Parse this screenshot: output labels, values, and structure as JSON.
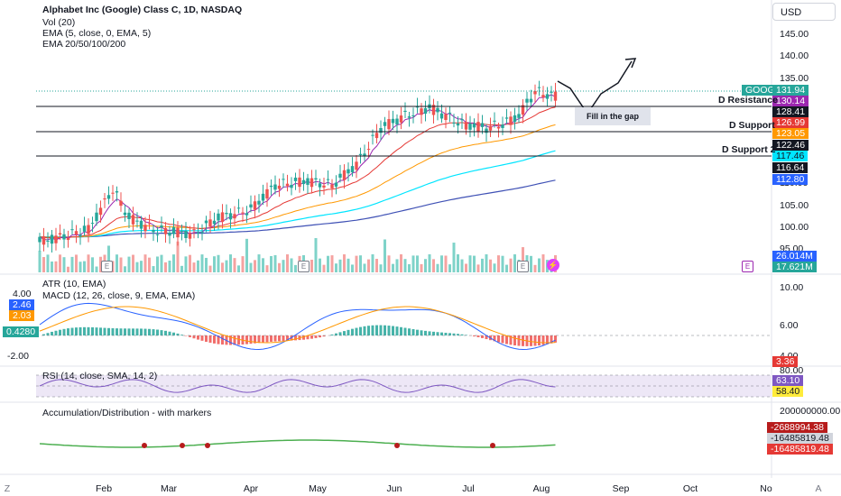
{
  "symbol_title": "Alphabet Inc (Google) Class C, 1D, NASDAQ",
  "indicators": {
    "vol": "Vol (20)",
    "ema5": "EMA (5, close, 0, EMA, 5)",
    "ema_multi": "EMA 20/50/100/200",
    "atr": "ATR (10, EMA)",
    "macd": "MACD (12, 26, close, 9, EMA, EMA)",
    "rsi": "RSI (14, close, SMA, 14, 2)",
    "ad": "Accumulation/Distribution - with markers"
  },
  "currency": "USD",
  "price_axis": [
    "145.00",
    "140.00",
    "135.00",
    "128.41",
    "123.05",
    "117.46",
    "110.00",
    "105.00",
    "100.00",
    "95.00"
  ],
  "price_tags": {
    "goog": "GOOG",
    "last": "131.94",
    "ema5": "130.14",
    "resistance": "128.41",
    "ema20": "126.99",
    "support": "123.05",
    "support_value": "122.46",
    "ema50": "117.46",
    "ema100": "116.64",
    "ema200": "112.80",
    "vol1": "26.014M",
    "vol2": "17.621M"
  },
  "levels": {
    "resistance": "D Resistance",
    "support": "D Support",
    "support2": "D Support 2",
    "gap_note": "Fill in the gap"
  },
  "atr_axis": [
    "10.00",
    "6.00",
    "4.00"
  ],
  "atr_tag": "3.36",
  "macd_tags": {
    "a": "4.00",
    "b": "2.46",
    "c": "2.03",
    "d": "0.4280",
    "e": "-2.00"
  },
  "rsi_axis": [
    "80.00"
  ],
  "rsi_tags": {
    "a": "63.10",
    "b": "58.40"
  },
  "ad_axis": [
    "200000000.00"
  ],
  "ad_tags": {
    "a": "-2688994.38",
    "b": "-16485819.48",
    "c": "-16485819.48"
  },
  "x_axis": [
    "Feb",
    "Mar",
    "Apr",
    "May",
    "Jun",
    "Jul",
    "Aug",
    "Sep",
    "Oct",
    "No"
  ],
  "earnings_marker": "E",
  "footer": {
    "left": "Z",
    "right": "A"
  },
  "colors": {
    "up": "#26a69a",
    "down": "#ef5350",
    "ema5": "#9c27b0",
    "ema20": "#e53935",
    "ema50": "#ff9800",
    "ema100": "#00e5ff",
    "ema200": "#3f51b5",
    "goog": "#26a69a"
  },
  "chart_data": {
    "type": "candlestick",
    "price_range": [
      93,
      148
    ],
    "ema5_last": 130.14,
    "last_close": 131.94
  }
}
